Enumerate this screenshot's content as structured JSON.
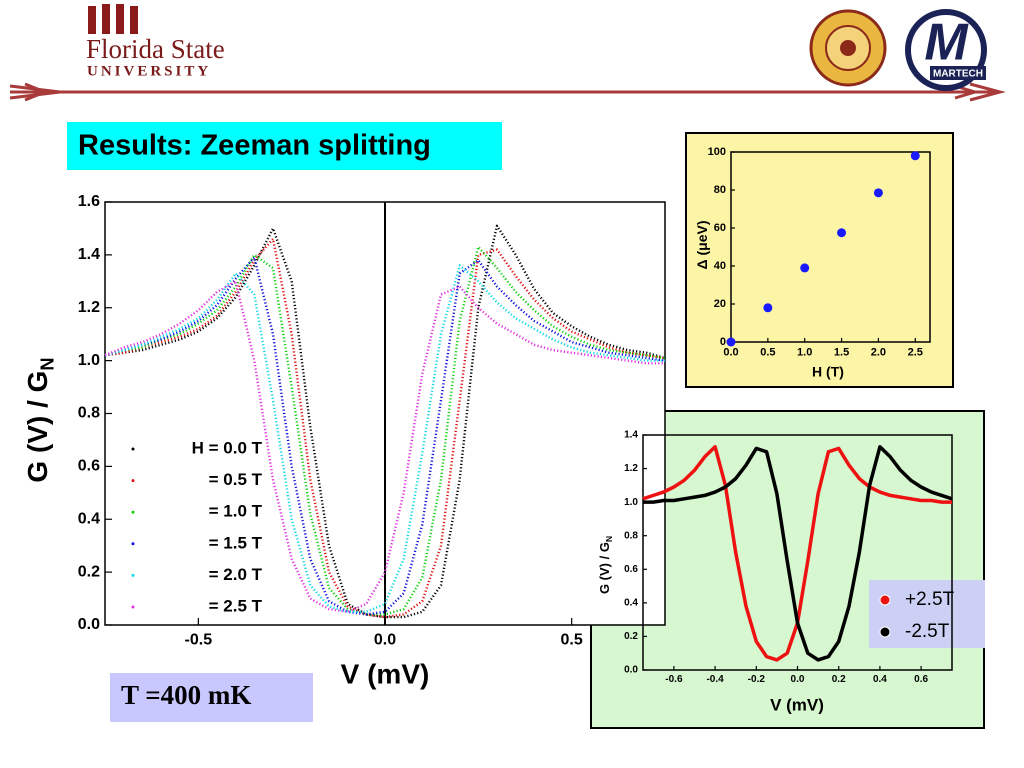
{
  "header": {
    "university": "Florida State",
    "university_sub": "UNIVERSITY",
    "logo_letter": "M",
    "logo": "MARTECH"
  },
  "slide": {
    "title": "Results: Zeeman splitting",
    "note": "T =400 mK"
  },
  "chart_data": [
    {
      "type": "line",
      "style": "dotted",
      "x_label": "V (mV)",
      "y_label": {
        "text": "G (V) / G",
        "subscript": "N"
      },
      "xlim": [
        -0.75,
        0.75
      ],
      "xticks": [
        -0.5,
        {
          "value": 0,
          "label": "0.0"
        },
        0.5
      ],
      "ylim": [
        0,
        1.6
      ],
      "yticks": [
        {
          "value": 0,
          "label": "0.0"
        },
        0.2,
        0.4,
        0.6,
        0.8,
        {
          "value": 1,
          "label": "1.0"
        },
        1.2,
        1.4,
        1.6
      ],
      "zero_line": true,
      "x": [
        -0.75,
        -0.7,
        -0.65,
        -0.6,
        -0.55,
        -0.5,
        -0.45,
        -0.4,
        -0.35,
        -0.3,
        -0.25,
        -0.2,
        -0.15,
        -0.1,
        -0.05,
        0,
        0.05,
        0.1,
        0.15,
        0.2,
        0.25,
        0.3,
        0.35,
        0.4,
        0.45,
        0.5,
        0.55,
        0.6,
        0.65,
        0.7,
        0.75
      ],
      "series": [
        {
          "name": "H = 0.0 T",
          "color": "#000000",
          "values": [
            1.02,
            1.03,
            1.04,
            1.06,
            1.08,
            1.11,
            1.16,
            1.24,
            1.36,
            1.5,
            1.3,
            0.75,
            0.3,
            0.08,
            0.04,
            0.03,
            0.03,
            0.05,
            0.15,
            0.55,
            1.2,
            1.51,
            1.4,
            1.27,
            1.18,
            1.13,
            1.09,
            1.06,
            1.04,
            1.03,
            1.01
          ]
        },
        {
          "name": "= 0.5 T",
          "color": "#e01010",
          "values": [
            1.02,
            1.03,
            1.05,
            1.07,
            1.09,
            1.12,
            1.17,
            1.26,
            1.38,
            1.46,
            1.1,
            0.55,
            0.2,
            0.07,
            0.04,
            0.03,
            0.04,
            0.09,
            0.3,
            0.85,
            1.4,
            1.42,
            1.32,
            1.23,
            1.16,
            1.11,
            1.08,
            1.05,
            1.03,
            1.02,
            1.01
          ]
        },
        {
          "name": "= 1.0 T",
          "color": "#10d010",
          "values": [
            1.02,
            1.04,
            1.05,
            1.08,
            1.1,
            1.14,
            1.19,
            1.28,
            1.4,
            1.35,
            0.9,
            0.42,
            0.14,
            0.06,
            0.04,
            0.04,
            0.06,
            0.18,
            0.55,
            1.15,
            1.43,
            1.35,
            1.26,
            1.19,
            1.13,
            1.09,
            1.06,
            1.04,
            1.03,
            1.02,
            1.01
          ]
        },
        {
          "name": "= 1.5 T",
          "color": "#1010e0",
          "values": [
            1.02,
            1.04,
            1.06,
            1.08,
            1.11,
            1.15,
            1.21,
            1.31,
            1.39,
            1.1,
            0.6,
            0.25,
            0.09,
            0.05,
            0.04,
            0.05,
            0.12,
            0.38,
            0.85,
            1.33,
            1.38,
            1.28,
            1.21,
            1.15,
            1.11,
            1.07,
            1.05,
            1.03,
            1.02,
            1.01,
            1
          ]
        },
        {
          "name": "= 2.0 T",
          "color": "#10d8e8",
          "values": [
            1.02,
            1.04,
            1.06,
            1.09,
            1.12,
            1.16,
            1.23,
            1.33,
            1.25,
            0.85,
            0.4,
            0.15,
            0.07,
            0.05,
            0.05,
            0.08,
            0.25,
            0.65,
            1.1,
            1.36,
            1.3,
            1.22,
            1.16,
            1.12,
            1.08,
            1.05,
            1.03,
            1.02,
            1.01,
            1,
            1
          ]
        },
        {
          "name": "= 2.5 T",
          "color": "#e030e0",
          "values": [
            1.02,
            1.05,
            1.07,
            1.1,
            1.14,
            1.19,
            1.26,
            1.3,
            1,
            0.55,
            0.25,
            0.1,
            0.06,
            0.05,
            0.08,
            0.2,
            0.5,
            0.95,
            1.25,
            1.28,
            1.2,
            1.14,
            1.1,
            1.06,
            1.04,
            1.03,
            1.02,
            1.01,
            1,
            0.99,
            0.99
          ]
        }
      ]
    },
    {
      "type": "scatter",
      "color": "#1a1aff",
      "x_label": "H (T)",
      "y_label": {
        "text": "Δ (μeV)"
      },
      "xlim": [
        0,
        2.7
      ],
      "xticks": [
        {
          "value": 0,
          "label": "0.0"
        },
        0.5,
        {
          "value": 1,
          "label": "1.0"
        },
        1.5,
        {
          "value": 2,
          "label": "2.0"
        },
        2.5
      ],
      "ylim": [
        0,
        100
      ],
      "yticks": [
        0,
        20,
        40,
        60,
        80,
        100
      ],
      "x": [
        0,
        0.5,
        1,
        1.5,
        2,
        2.5
      ],
      "values": [
        0,
        18,
        39,
        57.5,
        78.5,
        98
      ]
    },
    {
      "type": "line",
      "style": "solid",
      "x_label": "V (mV)",
      "y_label": {
        "text": "G (V) / G",
        "subscript": "N"
      },
      "xlim": [
        -0.75,
        0.75
      ],
      "xticks": [
        -0.6,
        -0.4,
        -0.2,
        {
          "value": 0,
          "label": "0.0"
        },
        0.2,
        0.4,
        0.6
      ],
      "ylim": [
        0,
        1.4
      ],
      "yticks": [
        {
          "value": 0,
          "label": "0.0"
        },
        0.2,
        0.4,
        0.6,
        0.8,
        {
          "value": 1,
          "label": "1.0"
        },
        1.2,
        1.4
      ],
      "x": [
        -0.75,
        -0.7,
        -0.65,
        -0.6,
        -0.55,
        -0.5,
        -0.45,
        -0.4,
        -0.35,
        -0.3,
        -0.25,
        -0.2,
        -0.15,
        -0.1,
        -0.05,
        0,
        0.05,
        0.1,
        0.15,
        0.2,
        0.25,
        0.3,
        0.35,
        0.4,
        0.45,
        0.5,
        0.55,
        0.6,
        0.65,
        0.7,
        0.75
      ],
      "series": [
        {
          "name": "+2.5T",
          "color": "#ee1111",
          "values": [
            1.02,
            1.04,
            1.06,
            1.09,
            1.13,
            1.19,
            1.27,
            1.33,
            1.1,
            0.7,
            0.38,
            0.17,
            0.08,
            0.06,
            0.1,
            0.28,
            0.65,
            1.05,
            1.3,
            1.32,
            1.22,
            1.14,
            1.09,
            1.06,
            1.04,
            1.03,
            1.02,
            1.01,
            1.01,
            1,
            1
          ]
        },
        {
          "name": "-2.5T",
          "color": "#000000",
          "values": [
            1,
            1,
            1.01,
            1.01,
            1.02,
            1.03,
            1.04,
            1.06,
            1.09,
            1.14,
            1.22,
            1.32,
            1.3,
            1.05,
            0.65,
            0.28,
            0.1,
            0.06,
            0.08,
            0.17,
            0.38,
            0.7,
            1.1,
            1.33,
            1.27,
            1.19,
            1.13,
            1.09,
            1.06,
            1.04,
            1.02
          ]
        }
      ]
    }
  ]
}
